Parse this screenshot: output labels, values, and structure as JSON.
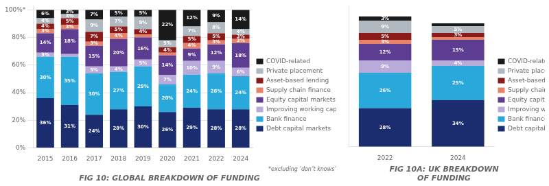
{
  "chart_data": [
    {
      "type": "bar",
      "title": "FIG 10: GLOBAL BREAKDOWN OF FUNDING",
      "annotations": [
        "*excluding ‘don’t knows’"
      ],
      "categories": [
        "2015",
        "2016",
        "2017",
        "2018",
        "2019",
        "2020",
        "2021",
        "2022",
        "2024"
      ],
      "series": [
        {
          "name": "Debt capital markets",
          "color": "#1b2d6e",
          "values": [
            36,
            31,
            24,
            28,
            30,
            26,
            29,
            28,
            28
          ],
          "value_labels": [
            "36%",
            "31%",
            "24%",
            "28%",
            "30%",
            "26%",
            "29%",
            "28%",
            "28%"
          ]
        },
        {
          "name": "Bank finance",
          "color": "#29a8dc",
          "values": [
            30,
            35,
            30,
            27,
            29,
            20,
            24,
            26,
            24
          ],
          "value_labels": [
            "30%",
            "35%",
            "30%",
            "27%",
            "29%",
            "20%",
            "24%",
            "26%",
            "24%"
          ]
        },
        {
          "name": "Improving working capital",
          "color": "#b8aad9",
          "values": [
            3,
            2,
            5,
            4,
            5,
            7,
            10,
            9,
            6
          ],
          "value_labels": [
            "3%",
            null,
            "5%",
            "4%",
            "5%",
            "7%",
            "10%",
            "9%",
            "6%"
          ]
        },
        {
          "name": "Equity capital markets",
          "color": "#5c3d91",
          "values": [
            14,
            18,
            15,
            20,
            16,
            14,
            9,
            12,
            18
          ],
          "value_labels": [
            "14%",
            "18%",
            "15%",
            "20%",
            "16%",
            "14%",
            "9%",
            "12%",
            "18%"
          ]
        },
        {
          "name": "Supply chain finance",
          "color": "#e8836b",
          "values": [
            3,
            3,
            3,
            4,
            2,
            2,
            4,
            3,
            3
          ],
          "value_labels": [
            "3%",
            "3%",
            "3%",
            "4%",
            null,
            null,
            "4%",
            "3%",
            "3%"
          ]
        },
        {
          "name": "Asset-based lending",
          "color": "#8b1a1a",
          "values": [
            4,
            5,
            7,
            5,
            4,
            4,
            5,
            5,
            3
          ],
          "value_labels": [
            "4%",
            "5%",
            "7%",
            "5%",
            "4%",
            "4%",
            "5%",
            "5%",
            "3%"
          ]
        },
        {
          "name": "Private placement",
          "color": "#b0b8c0",
          "values": [
            4,
            3,
            9,
            7,
            9,
            5,
            7,
            8,
            4
          ],
          "value_labels": [
            "4%",
            "3%",
            "9%",
            "7%",
            "9%",
            "5%",
            "7%",
            "8%",
            "4%"
          ]
        },
        {
          "name": "COVID-related",
          "color": "#1a1a1a",
          "values": [
            6,
            3,
            7,
            5,
            5,
            22,
            12,
            9,
            14
          ],
          "value_labels": [
            "6%",
            "3%",
            "7%",
            "5%",
            "5%",
            "22%",
            "12%",
            "9%",
            "14%"
          ]
        }
      ],
      "stacked": true,
      "data_labels": true,
      "ylim": [
        0,
        103
      ],
      "yticks": [
        {
          "value": 0,
          "label": "0%"
        },
        {
          "value": 20,
          "label": "20%"
        },
        {
          "value": 40,
          "label": "40%"
        },
        {
          "value": 60,
          "label": "60%"
        },
        {
          "value": 80,
          "label": "80%"
        },
        {
          "value": 100,
          "label": "100%*"
        }
      ],
      "grid": true,
      "legend": "right"
    },
    {
      "type": "bar",
      "title": "FIG 10A: UK BREAKDOWN\nOF FUNDING",
      "categories": [
        "2022",
        "2024"
      ],
      "series": [
        {
          "name": "Debt capital markets",
          "color": "#1b2d6e",
          "values": [
            28,
            34
          ],
          "value_labels": [
            "28%",
            "34%"
          ]
        },
        {
          "name": "Bank finance",
          "color": "#29a8dc",
          "values": [
            26,
            25
          ],
          "value_labels": [
            "26%",
            "25%"
          ]
        },
        {
          "name": "Improving working capital",
          "color": "#b8aad9",
          "values": [
            9,
            4
          ],
          "value_labels": [
            "9%",
            "4%"
          ]
        },
        {
          "name": "Equity capital markets",
          "color": "#5c3d91",
          "values": [
            12,
            15
          ],
          "value_labels": [
            "12%",
            "15%"
          ]
        },
        {
          "name": "Supply chain finance",
          "color": "#e8836b",
          "values": [
            3,
            2
          ],
          "value_labels": [
            "3%",
            null
          ]
        },
        {
          "name": "Asset-based lending",
          "color": "#8b1a1a",
          "values": [
            5,
            3
          ],
          "value_labels": [
            "5%",
            "3%"
          ]
        },
        {
          "name": "Private placement",
          "color": "#b0b8c0",
          "values": [
            9,
            5
          ],
          "value_labels": [
            "9%",
            "5%"
          ]
        },
        {
          "name": "COVID-related",
          "color": "#1a1a1a",
          "values": [
            3,
            2
          ],
          "value_labels": [
            "3%",
            null
          ]
        }
      ],
      "stacked": true,
      "data_labels": true,
      "ylim": [
        0,
        103
      ],
      "grid": false,
      "tick_labels": "x",
      "legend": "right"
    }
  ]
}
